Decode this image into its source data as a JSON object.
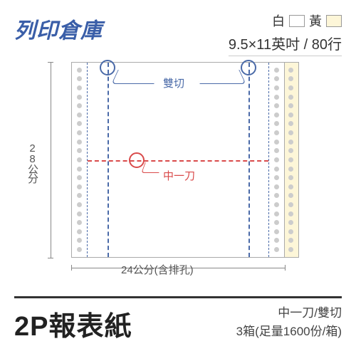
{
  "logo": {
    "text": "列印倉庫",
    "color": "#3a5ea8"
  },
  "header": {
    "colors": [
      {
        "label": "白",
        "hex": "#ffffff"
      },
      {
        "label": "黃",
        "hex": "#fdf6d8"
      }
    ],
    "size_text": "9.5×11英吋 / 80行"
  },
  "diagram": {
    "height_label": "28公分",
    "width_label": "24公分(含排孔)",
    "double_cut_label": "雙切",
    "middle_cut_label": "中一刀",
    "paper_back_color": "#fdf6d8",
    "paper_front_color": "#ffffff",
    "vcut_color": "#4a6aa8",
    "hcut_color": "#d94a4a",
    "perf_holes": 21
  },
  "footer": {
    "product": "2P報表紙",
    "line1": "中一刀/雙切",
    "line2": "3箱(足量1600份/箱)"
  }
}
